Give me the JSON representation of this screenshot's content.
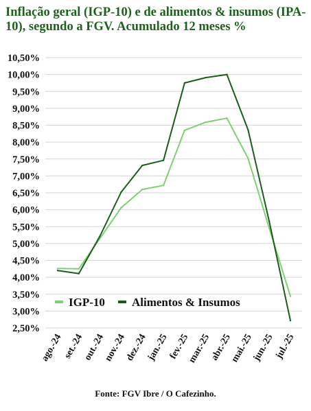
{
  "chart_data": {
    "type": "line",
    "title": "Inflação geral (IGP-10) e de alimentos & insumos (IPA-10), segundo a FGV. Acumulado 12 meses %",
    "categories": [
      "ago.-24",
      "set.-24",
      "out.-24",
      "nov.-24",
      "dez.-24",
      "jan.-25",
      "fev.-25",
      "mar.-25",
      "abr.-25",
      "mai.-25",
      "jun.-25",
      "jul.-25"
    ],
    "y_ticks": [
      "2,50%",
      "3,00%",
      "3,50%",
      "4,00%",
      "4,50%",
      "5,00%",
      "5,50%",
      "6,00%",
      "6,50%",
      "7,00%",
      "7,50%",
      "8,00%",
      "8,50%",
      "9,00%",
      "9,50%",
      "10,00%",
      "10,50%"
    ],
    "ylim": [
      2.5,
      10.5
    ],
    "grid": true,
    "legend_position": "bottom-right",
    "series": [
      {
        "name": "IGP-10",
        "color": "#7dcf72",
        "values": [
          4.26,
          4.25,
          5.15,
          6.06,
          6.6,
          6.72,
          8.35,
          8.59,
          8.71,
          7.52,
          5.45,
          3.44
        ]
      },
      {
        "name": "Alimentos & Insumos",
        "color": "#1a5c1a",
        "values": [
          4.2,
          4.11,
          5.22,
          6.52,
          7.31,
          7.46,
          9.75,
          9.91,
          10.0,
          8.36,
          5.65,
          2.72
        ]
      }
    ],
    "source": "Fonte: FGV Ibre / O Cafezinho."
  }
}
